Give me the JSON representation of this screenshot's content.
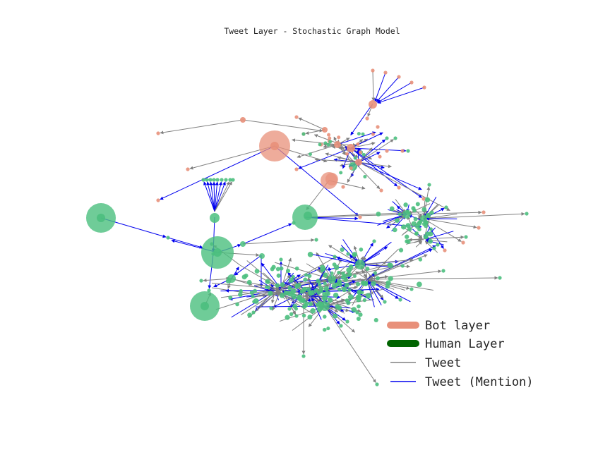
{
  "figure": {
    "title": "Tweet Layer - Stochastic Graph Model"
  },
  "colors": {
    "bot": "#e8907a",
    "human": "#4bbf7e",
    "human_legend": "#006400",
    "tweet": "#808080",
    "mention": "#0000ee"
  },
  "legend": {
    "bot": "Bot layer",
    "human": "Human Layer",
    "tweet": "Tweet",
    "mention": "Tweet (Mention)"
  }
}
